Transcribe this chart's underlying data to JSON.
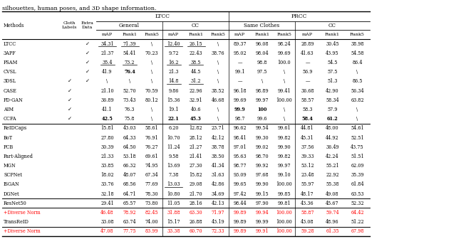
{
  "caption": "silhouettes, human poses, and 3D shape information.",
  "rows": [
    {
      "name": "LTCC",
      "cloth": "",
      "extra": "v",
      "ltcc_gen_map": "34.31",
      "ltcc_gen_r1": "71.39",
      "ltcc_gen_r5": "\\",
      "ltcc_cc_map": "12.40",
      "ltcc_cc_r1": "26.15",
      "ltcc_cc_r5": "\\",
      "prcc_sc_map": "89.37",
      "prcc_sc_r1": "96.08",
      "prcc_sc_r5": "98.24",
      "prcc_cc_map": "28.89",
      "prcc_cc_r1": "30.45",
      "prcc_cc_r5": "38.98",
      "underline": [
        "ltcc_gen_map",
        "ltcc_gen_r1",
        "ltcc_cc_map",
        "ltcc_cc_r1"
      ],
      "bold": [],
      "red": false
    },
    {
      "name": "3APF",
      "cloth": "",
      "extra": "v",
      "ltcc_gen_map": "21.37",
      "ltcc_gen_r1": "54.41",
      "ltcc_gen_r5": "70.23",
      "ltcc_cc_map": "9.72",
      "ltcc_cc_r1": "22.43",
      "ltcc_cc_r5": "38.76",
      "prcc_sc_map": "95.02",
      "prcc_sc_r1": "98.04",
      "prcc_sc_r5": "99.69",
      "prcc_cc_map": "41.63",
      "prcc_cc_r1": "43.95",
      "prcc_cc_r5": "54.58",
      "underline": [],
      "bold": [],
      "red": false
    },
    {
      "name": "FSAM",
      "cloth": "",
      "extra": "v",
      "ltcc_gen_map": "35.4",
      "ltcc_gen_r1": "73.2",
      "ltcc_gen_r5": "\\",
      "ltcc_cc_map": "16.2",
      "ltcc_cc_r1": "38.5",
      "ltcc_cc_r5": "\\",
      "prcc_sc_map": "—",
      "prcc_sc_r1": "98.8",
      "prcc_sc_r5": "100.0",
      "prcc_cc_map": "—",
      "prcc_cc_r1": "54.5",
      "prcc_cc_r5": "86.4",
      "underline": [
        "ltcc_gen_map",
        "ltcc_gen_r1",
        "ltcc_cc_map",
        "ltcc_cc_r1"
      ],
      "bold": [],
      "red": false
    },
    {
      "name": "CVSL",
      "cloth": "",
      "extra": "v",
      "ltcc_gen_map": "41.9",
      "ltcc_gen_r1": "76.4",
      "ltcc_gen_r5": "\\",
      "ltcc_cc_map": "21.3",
      "ltcc_cc_r1": "44.5",
      "ltcc_cc_r5": "\\",
      "prcc_sc_map": "99.1",
      "prcc_sc_r1": "97.5",
      "prcc_sc_r5": "\\",
      "prcc_cc_map": "56.9",
      "prcc_cc_r1": "57.5",
      "prcc_cc_r5": "\\",
      "underline": [],
      "bold": [
        "ltcc_gen_r1"
      ],
      "red": false
    },
    {
      "name": "3DSL",
      "cloth": "v",
      "extra": "v",
      "ltcc_gen_map": "\\",
      "ltcc_gen_r1": "\\",
      "ltcc_gen_r5": "\\",
      "ltcc_cc_map": "14.8",
      "ltcc_cc_r1": "31.2",
      "ltcc_cc_r5": "\\",
      "prcc_sc_map": "—",
      "prcc_sc_r1": "\\",
      "prcc_sc_r5": "\\",
      "prcc_cc_map": "—",
      "prcc_cc_r1": "51.3",
      "prcc_cc_r5": "86.5",
      "underline": [
        "ltcc_cc_map",
        "ltcc_cc_r1"
      ],
      "bold": [],
      "red": false
    },
    {
      "name": "CASE",
      "cloth": "v",
      "extra": "",
      "ltcc_gen_map": "21.10",
      "ltcc_gen_r1": "52.70",
      "ltcc_gen_r5": "70.59",
      "ltcc_cc_map": "9.86",
      "ltcc_cc_r1": "22.96",
      "ltcc_cc_r5": "38.52",
      "prcc_sc_map": "96.18",
      "prcc_sc_r1": "98.89",
      "prcc_sc_r5": "99.41",
      "prcc_cc_map": "36.68",
      "prcc_cc_r1": "42.90",
      "prcc_cc_r5": "56.34",
      "underline": [],
      "bold": [],
      "red": false
    },
    {
      "name": "FD-GAN",
      "cloth": "v",
      "extra": "",
      "ltcc_gen_map": "36.89",
      "ltcc_gen_r1": "73.43",
      "ltcc_gen_r5": "80.12",
      "ltcc_cc_map": "15.36",
      "ltcc_cc_r1": "32.91",
      "ltcc_cc_r5": "46.68",
      "prcc_sc_map": "99.69",
      "prcc_sc_r1": "99.97",
      "prcc_sc_r5": "100.00",
      "prcc_cc_map": "58.57",
      "prcc_cc_r1": "58.34",
      "prcc_cc_r5": "63.82",
      "underline": [],
      "bold": [],
      "red": false
    },
    {
      "name": "AIM",
      "cloth": "v",
      "extra": "",
      "ltcc_gen_map": "41.1",
      "ltcc_gen_r1": "76.3",
      "ltcc_gen_r5": "\\",
      "ltcc_cc_map": "19.1",
      "ltcc_cc_r1": "40.6",
      "ltcc_cc_r5": "\\",
      "prcc_sc_map": "99.9",
      "prcc_sc_r1": "100",
      "prcc_sc_r5": "\\",
      "prcc_cc_map": "58.3",
      "prcc_cc_r1": "57.9",
      "prcc_cc_r5": "\\",
      "underline": [],
      "bold": [
        "prcc_sc_map",
        "prcc_sc_r1"
      ],
      "red": false
    },
    {
      "name": "CCFA",
      "cloth": "v",
      "extra": "",
      "ltcc_gen_map": "42.5",
      "ltcc_gen_r1": "75.8",
      "ltcc_gen_r5": "\\",
      "ltcc_cc_map": "22.1",
      "ltcc_cc_r1": "45.3",
      "ltcc_cc_r5": "\\",
      "prcc_sc_map": "98.7",
      "prcc_sc_r1": "99.6",
      "prcc_sc_r5": "\\",
      "prcc_cc_map": "58.4",
      "prcc_cc_r1": "61.2",
      "prcc_cc_r5": "\\",
      "underline": [],
      "bold": [
        "ltcc_gen_map",
        "ltcc_cc_map",
        "ltcc_cc_r1",
        "prcc_cc_map",
        "prcc_cc_r1"
      ],
      "red": false
    },
    {
      "name": "ReIDCaps",
      "cloth": "",
      "extra": "",
      "ltcc_gen_map": "15.81",
      "ltcc_gen_r1": "43.03",
      "ltcc_gen_r5": "58.61",
      "ltcc_cc_map": "6.20",
      "ltcc_cc_r1": "12.82",
      "ltcc_cc_r5": "23.71",
      "prcc_sc_map": "96.62",
      "prcc_sc_r1": "99.54",
      "prcc_sc_r5": "99.61",
      "prcc_cc_map": "44.81",
      "prcc_cc_r1": "48.00",
      "prcc_cc_r5": "54.61",
      "underline": [],
      "bold": [],
      "red": false
    },
    {
      "name": "BoT",
      "cloth": "",
      "extra": "",
      "ltcc_gen_map": "27.80",
      "ltcc_gen_r1": "64.33",
      "ltcc_gen_r5": "76.91",
      "ltcc_cc_map": "10.70",
      "ltcc_cc_r1": "28.12",
      "ltcc_cc_r5": "42.12",
      "prcc_sc_map": "98.41",
      "prcc_sc_r1": "99.30",
      "prcc_sc_r5": "99.82",
      "prcc_cc_map": "45.31",
      "prcc_cc_r1": "44.92",
      "prcc_cc_r5": "52.51",
      "underline": [],
      "bold": [],
      "red": false
    },
    {
      "name": "PCB",
      "cloth": "",
      "extra": "",
      "ltcc_gen_map": "30.39",
      "ltcc_gen_r1": "64.50",
      "ltcc_gen_r5": "76.27",
      "ltcc_cc_map": "11.24",
      "ltcc_cc_r1": "21.27",
      "ltcc_cc_r5": "38.78",
      "prcc_sc_map": "97.01",
      "prcc_sc_r1": "99.02",
      "prcc_sc_r5": "99.90",
      "prcc_cc_map": "37.56",
      "prcc_cc_r1": "36.49",
      "prcc_cc_r5": "43.75",
      "underline": [],
      "bold": [],
      "red": false
    },
    {
      "name": "Part-Aligned",
      "cloth": "",
      "extra": "",
      "ltcc_gen_map": "21.33",
      "ltcc_gen_r1": "53.18",
      "ltcc_gen_r5": "69.61",
      "ltcc_cc_map": "9.58",
      "ltcc_cc_r1": "21.41",
      "ltcc_cc_r5": "38.50",
      "prcc_sc_map": "95.63",
      "prcc_sc_r1": "98.70",
      "prcc_sc_r5": "99.82",
      "prcc_cc_map": "39.33",
      "prcc_cc_r1": "42.24",
      "prcc_cc_r5": "51.51",
      "underline": [],
      "bold": [],
      "red": false
    },
    {
      "name": "MGN",
      "cloth": "",
      "extra": "",
      "ltcc_gen_map": "33.85",
      "ltcc_gen_r1": "66.32",
      "ltcc_gen_r5": "74.95",
      "ltcc_cc_map": "13.69",
      "ltcc_cc_r1": "27.30",
      "ltcc_cc_r5": "41.34",
      "prcc_sc_map": "98.77",
      "prcc_sc_r1": "99.92",
      "prcc_sc_r5": "99.97",
      "prcc_cc_map": "53.12",
      "prcc_cc_r1": "55.21",
      "prcc_cc_r5": "62.09",
      "underline": [],
      "bold": [],
      "red": false
    },
    {
      "name": "SCPNet",
      "cloth": "",
      "extra": "",
      "ltcc_gen_map": "18.02",
      "ltcc_gen_r1": "48.07",
      "ltcc_gen_r5": "67.34",
      "ltcc_cc_map": "7.38",
      "ltcc_cc_r1": "15.82",
      "ltcc_cc_r5": "31.63",
      "prcc_sc_map": "93.09",
      "prcc_sc_r1": "97.68",
      "prcc_sc_r5": "99.10",
      "prcc_cc_map": "23.48",
      "prcc_cc_r1": "22.92",
      "prcc_cc_r5": "35.39",
      "underline": [],
      "bold": [],
      "red": false
    },
    {
      "name": "ISGAN",
      "cloth": "",
      "extra": "",
      "ltcc_gen_map": "33.76",
      "ltcc_gen_r1": "68.56",
      "ltcc_gen_r5": "77.69",
      "ltcc_cc_map": "13.03",
      "ltcc_cc_r1": "29.08",
      "ltcc_cc_r5": "42.86",
      "prcc_sc_map": "99.65",
      "prcc_sc_r1": "99.90",
      "prcc_sc_r5": "100.00",
      "prcc_cc_map": "55.97",
      "prcc_cc_r1": "55.38",
      "prcc_cc_r5": "61.84",
      "underline": [
        "ltcc_cc_map"
      ],
      "bold": [],
      "red": false
    },
    {
      "name": "DGNet",
      "cloth": "",
      "extra": "",
      "ltcc_gen_map": "32.18",
      "ltcc_gen_r1": "64.71",
      "ltcc_gen_r5": "78.30",
      "ltcc_cc_map": "10.80",
      "ltcc_cc_r1": "21.70",
      "ltcc_cc_r5": "34.69",
      "prcc_sc_map": "97.42",
      "prcc_sc_r1": "99.15",
      "prcc_sc_r5": "99.85",
      "prcc_cc_map": "48.17",
      "prcc_cc_r1": "49.08",
      "prcc_cc_r5": "63.53",
      "underline": [],
      "bold": [],
      "red": false
    },
    {
      "name": "ResNet50",
      "cloth": "",
      "extra": "",
      "ltcc_gen_map": "29.41",
      "ltcc_gen_r1": "65.57",
      "ltcc_gen_r5": "73.80",
      "ltcc_cc_map": "11.05",
      "ltcc_cc_r1": "28.16",
      "ltcc_cc_r5": "42.13",
      "prcc_sc_map": "98.44",
      "prcc_sc_r1": "97.90",
      "prcc_sc_r5": "99.81",
      "prcc_cc_map": "43.36",
      "prcc_cc_r1": "45.67",
      "prcc_cc_r5": "52.32",
      "underline": [],
      "bold": [],
      "red": false
    },
    {
      "name": "+Diverse Norm",
      "cloth": "",
      "extra": "",
      "ltcc_gen_map": "46.48",
      "ltcc_gen_r1": "78.92",
      "ltcc_gen_r5": "82.45",
      "ltcc_cc_map": "31.88",
      "ltcc_cc_r1": "63.30",
      "ltcc_cc_r5": "71.97",
      "prcc_sc_map": "99.89",
      "prcc_sc_r1": "99.94",
      "prcc_sc_r5": "100.00",
      "prcc_cc_map": "58.87",
      "prcc_cc_r1": "59.74",
      "prcc_cc_r5": "64.42",
      "underline": [],
      "bold": [],
      "red": true
    },
    {
      "name": "TransReID",
      "cloth": "",
      "extra": "",
      "ltcc_gen_map": "33.08",
      "ltcc_gen_r1": "63.74",
      "ltcc_gen_r5": "74.00",
      "ltcc_cc_map": "15.17",
      "ltcc_cc_r1": "26.88",
      "ltcc_cc_r5": "43.19",
      "prcc_sc_map": "99.89",
      "prcc_sc_r1": "99.99",
      "prcc_sc_r5": "100.00",
      "prcc_cc_map": "43.08",
      "prcc_cc_r1": "48.96",
      "prcc_cc_r5": "51.22",
      "underline": [],
      "bold": [],
      "red": false
    },
    {
      "name": "+Diverse Norm",
      "cloth": "",
      "extra": "",
      "ltcc_gen_map": "47.08",
      "ltcc_gen_r1": "77.75",
      "ltcc_gen_r5": "83.99",
      "ltcc_cc_map": "33.38",
      "ltcc_cc_r1": "60.70",
      "ltcc_cc_r5": "72.33",
      "prcc_sc_map": "99.89",
      "prcc_sc_r1": "99.91",
      "prcc_sc_r5": "100.00",
      "prcc_cc_map": "59.28",
      "prcc_cc_r1": "61.35",
      "prcc_cc_r5": "67.98",
      "underline": [],
      "bold": [],
      "red": true
    }
  ],
  "group_sep_after": [
    8,
    16,
    17,
    19
  ],
  "red_color": "#ff0000",
  "black_color": "#000000"
}
